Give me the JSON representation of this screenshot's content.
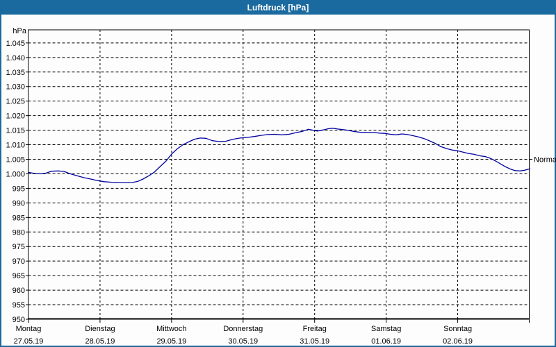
{
  "window": {
    "title": "Luftdruck [hPa]"
  },
  "colors": {
    "titlebar_bg": "#1b6a9f",
    "titlebar_text": "#ffffff",
    "frame": "#1b6a9f",
    "plot_border": "#000000",
    "gridline": "#000000",
    "tick_text": "#000000",
    "line_color": "#0000a0",
    "background": "#fdfdfd"
  },
  "chart_data": {
    "type": "line",
    "title": "Luftdruck [hPa]",
    "ylabel": "hPa",
    "ylim": [
      950,
      1049.5
    ],
    "grid": true,
    "y_ticks": [
      {
        "value": 1045,
        "label": "1.045"
      },
      {
        "value": 1040,
        "label": "1.040"
      },
      {
        "value": 1035,
        "label": "1.035"
      },
      {
        "value": 1030,
        "label": "1.030"
      },
      {
        "value": 1025,
        "label": "1.025"
      },
      {
        "value": 1020,
        "label": "1.020"
      },
      {
        "value": 1015,
        "label": "1.015"
      },
      {
        "value": 1010,
        "label": "1.010"
      },
      {
        "value": 1005,
        "label": "1.005"
      },
      {
        "value": 1000,
        "label": "1.000"
      },
      {
        "value": 995,
        "label": "995"
      },
      {
        "value": 990,
        "label": "990"
      },
      {
        "value": 985,
        "label": "985"
      },
      {
        "value": 980,
        "label": "980"
      },
      {
        "value": 975,
        "label": "975"
      },
      {
        "value": 970,
        "label": "970"
      },
      {
        "value": 965,
        "label": "965"
      },
      {
        "value": 960,
        "label": "960"
      },
      {
        "value": 955,
        "label": "955"
      },
      {
        "value": 950,
        "label": "950"
      }
    ],
    "x_ticks": [
      {
        "day": 0,
        "weekday": "Montag",
        "date": "27.05.19"
      },
      {
        "day": 1,
        "weekday": "Dienstag",
        "date": "28.05.19"
      },
      {
        "day": 2,
        "weekday": "Mittwoch",
        "date": "29.05.19"
      },
      {
        "day": 3,
        "weekday": "Donnerstag",
        "date": "30.05.19"
      },
      {
        "day": 4,
        "weekday": "Freitag",
        "date": "31.05.19"
      },
      {
        "day": 5,
        "weekday": "Samstag",
        "date": "01.06.19"
      },
      {
        "day": 6,
        "weekday": "Sonntag",
        "date": "02.06.19"
      },
      {
        "day": 7,
        "weekday": "",
        "date": ""
      }
    ],
    "normal_marker": {
      "label": "Normal",
      "value": 1005
    },
    "series": [
      {
        "name": "Luftdruck",
        "color": "#0000a0",
        "points": [
          [
            0.0,
            1000.5
          ],
          [
            0.09,
            1000.1
          ],
          [
            0.17,
            1000.0
          ],
          [
            0.24,
            1000.2
          ],
          [
            0.32,
            1000.9
          ],
          [
            0.42,
            1001.0
          ],
          [
            0.5,
            1000.8
          ],
          [
            0.57,
            1000.1
          ],
          [
            0.67,
            999.4
          ],
          [
            0.77,
            998.7
          ],
          [
            0.87,
            998.2
          ],
          [
            0.96,
            997.7
          ],
          [
            1.06,
            997.3
          ],
          [
            1.16,
            997.1
          ],
          [
            1.25,
            997.0
          ],
          [
            1.35,
            996.9
          ],
          [
            1.45,
            997.0
          ],
          [
            1.53,
            997.4
          ],
          [
            1.6,
            998.2
          ],
          [
            1.68,
            999.3
          ],
          [
            1.76,
            1000.6
          ],
          [
            1.84,
            1002.5
          ],
          [
            1.92,
            1004.3
          ],
          [
            2.0,
            1006.8
          ],
          [
            2.08,
            1008.6
          ],
          [
            2.16,
            1010.0
          ],
          [
            2.24,
            1011.0
          ],
          [
            2.32,
            1011.9
          ],
          [
            2.4,
            1012.3
          ],
          [
            2.48,
            1012.2
          ],
          [
            2.57,
            1011.4
          ],
          [
            2.66,
            1011.1
          ],
          [
            2.76,
            1011.2
          ],
          [
            2.86,
            1011.9
          ],
          [
            2.96,
            1012.3
          ],
          [
            3.05,
            1012.5
          ],
          [
            3.15,
            1012.8
          ],
          [
            3.25,
            1013.2
          ],
          [
            3.34,
            1013.5
          ],
          [
            3.44,
            1013.6
          ],
          [
            3.54,
            1013.4
          ],
          [
            3.64,
            1013.6
          ],
          [
            3.73,
            1014.1
          ],
          [
            3.83,
            1014.6
          ],
          [
            3.91,
            1015.3
          ],
          [
            3.98,
            1015.0
          ],
          [
            4.04,
            1014.7
          ],
          [
            4.12,
            1015.1
          ],
          [
            4.19,
            1015.5
          ],
          [
            4.25,
            1015.7
          ],
          [
            4.32,
            1015.4
          ],
          [
            4.39,
            1015.2
          ],
          [
            4.46,
            1015.0
          ],
          [
            4.54,
            1014.6
          ],
          [
            4.63,
            1014.3
          ],
          [
            4.72,
            1014.2
          ],
          [
            4.82,
            1014.2
          ],
          [
            4.91,
            1014.0
          ],
          [
            4.98,
            1013.9
          ],
          [
            5.06,
            1013.6
          ],
          [
            5.14,
            1013.4
          ],
          [
            5.22,
            1013.7
          ],
          [
            5.3,
            1013.5
          ],
          [
            5.38,
            1013.1
          ],
          [
            5.45,
            1012.7
          ],
          [
            5.53,
            1012.1
          ],
          [
            5.61,
            1011.3
          ],
          [
            5.69,
            1010.4
          ],
          [
            5.76,
            1009.4
          ],
          [
            5.84,
            1008.7
          ],
          [
            5.92,
            1008.2
          ],
          [
            6.0,
            1007.9
          ],
          [
            6.08,
            1007.4
          ],
          [
            6.15,
            1007.0
          ],
          [
            6.23,
            1006.7
          ],
          [
            6.31,
            1006.2
          ],
          [
            6.39,
            1005.9
          ],
          [
            6.46,
            1005.3
          ],
          [
            6.53,
            1004.4
          ],
          [
            6.6,
            1003.4
          ],
          [
            6.67,
            1002.4
          ],
          [
            6.74,
            1001.6
          ],
          [
            6.8,
            1001.1
          ],
          [
            6.87,
            1001.0
          ],
          [
            6.93,
            1001.2
          ],
          [
            6.97,
            1001.5
          ],
          [
            7.01,
            1001.7
          ]
        ]
      }
    ]
  }
}
